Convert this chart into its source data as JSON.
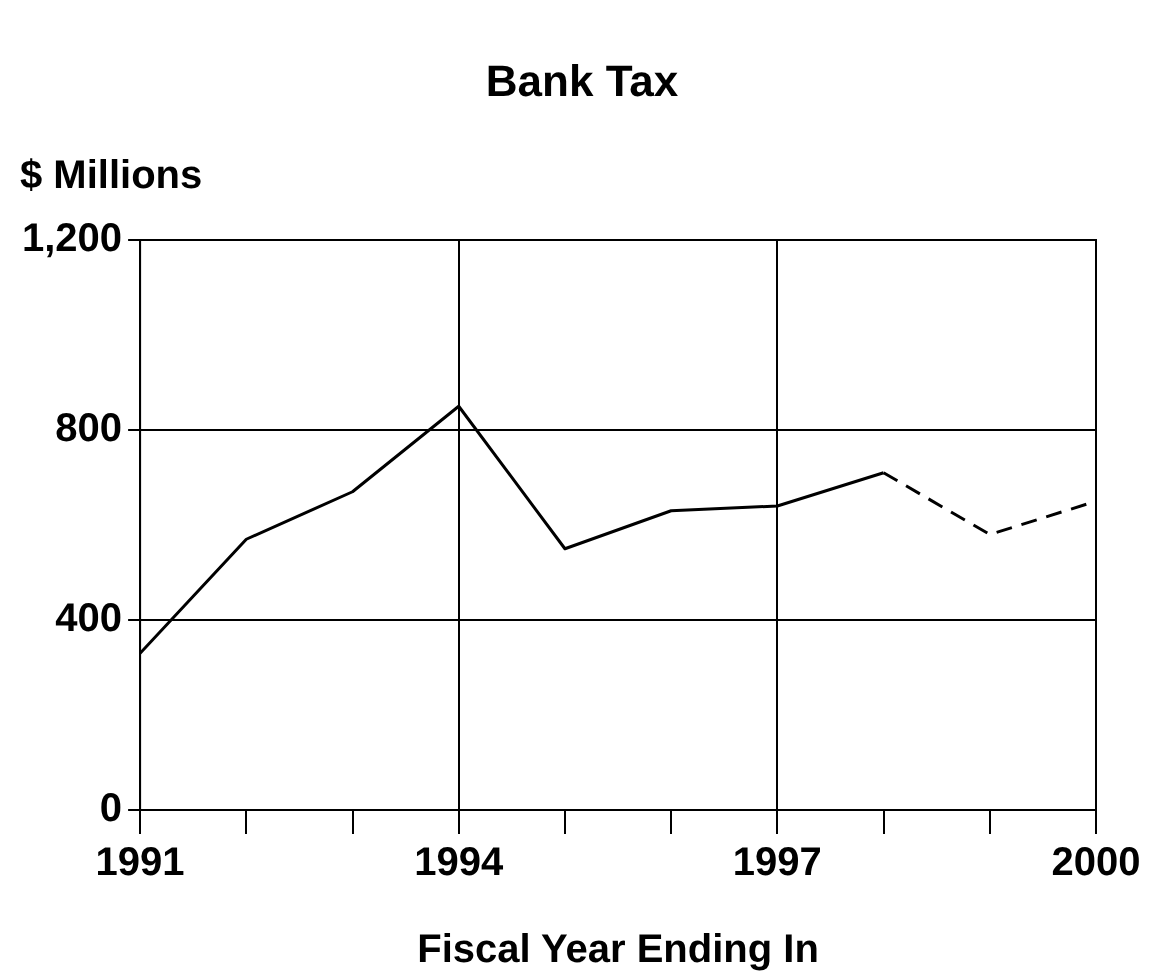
{
  "chart_data": {
    "type": "line",
    "title": "Bank Tax",
    "xlabel": "Fiscal Year Ending In",
    "ylabel": "$ Millions",
    "series": [
      {
        "color": "#000000",
        "line_style": "solid",
        "x": [
          1991,
          1992,
          1993,
          1994,
          1995,
          1996,
          1997,
          1998
        ],
        "values": [
          330,
          570,
          670,
          850,
          550,
          630,
          640,
          710
        ]
      },
      {
        "color": "#000000",
        "line_style": "dashed",
        "x": [
          1998,
          1999,
          2000
        ],
        "values": [
          710,
          580,
          650
        ]
      }
    ],
    "xlim": [
      1991,
      2000
    ],
    "xticks": [
      1991,
      {
        "value": 1992,
        "label": null
      },
      {
        "value": 1993,
        "label": null
      },
      1994,
      {
        "value": 1995,
        "label": null
      },
      {
        "value": 1996,
        "label": null
      },
      1997,
      {
        "value": 1998,
        "label": null
      },
      {
        "value": 1999,
        "label": null
      },
      2000
    ],
    "ylim": [
      0,
      1200
    ],
    "yticks": [
      0,
      400,
      800,
      {
        "value": 1200,
        "label": "1,200"
      }
    ],
    "grid": true,
    "legend": false,
    "marker": "none"
  }
}
